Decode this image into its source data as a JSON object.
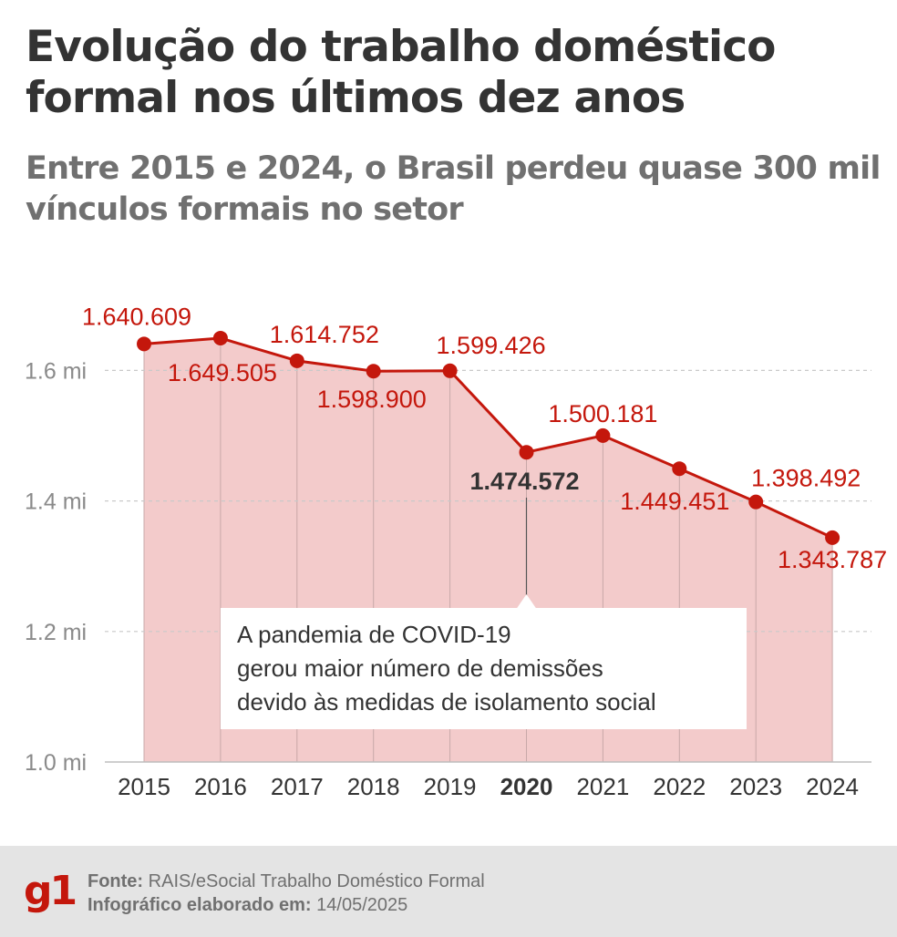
{
  "title": "Evolução do trabalho doméstico formal nos últimos dez anos",
  "subtitle": "Entre 2015 e 2024, o Brasil perdeu quase 300 mil vínculos formais no setor",
  "chart_data": {
    "type": "area",
    "title": "Evolução do trabalho doméstico formal nos últimos dez anos",
    "categories": [
      "2015",
      "2016",
      "2017",
      "2018",
      "2019",
      "2020",
      "2021",
      "2022",
      "2023",
      "2024"
    ],
    "values": [
      1640609,
      1649505,
      1614752,
      1598900,
      1599426,
      1474572,
      1500181,
      1449451,
      1398492,
      1343787
    ],
    "value_labels": [
      "1.640.609",
      "1.649.505",
      "1.614.752",
      "1.598.900",
      "1.599.426",
      "1.474.572",
      "1.500.181",
      "1.449.451",
      "1.398.492",
      "1.343.787"
    ],
    "highlight_category": "2020",
    "ylim": [
      1000000,
      1700000
    ],
    "yticks": [
      1000000,
      1200000,
      1400000,
      1600000
    ],
    "ytick_labels": [
      "1.0 mi",
      "1.2 mi",
      "1.4 mi",
      "1.6 mi"
    ],
    "grid": true,
    "color_line": "#c4170c",
    "color_fill": "#f3cbcb",
    "annotation": {
      "category": "2020",
      "lines": [
        "A pandemia de COVID-19",
        "gerou maior número de demissões",
        "devido às medidas de isolamento social"
      ]
    }
  },
  "footer": {
    "logo": "g1",
    "source_label": "Fonte:",
    "source_text": "RAIS/eSocial Trabalho Doméstico Formal",
    "date_label": "Infográfico elaborado em:",
    "date_text": "14/05/2025"
  }
}
